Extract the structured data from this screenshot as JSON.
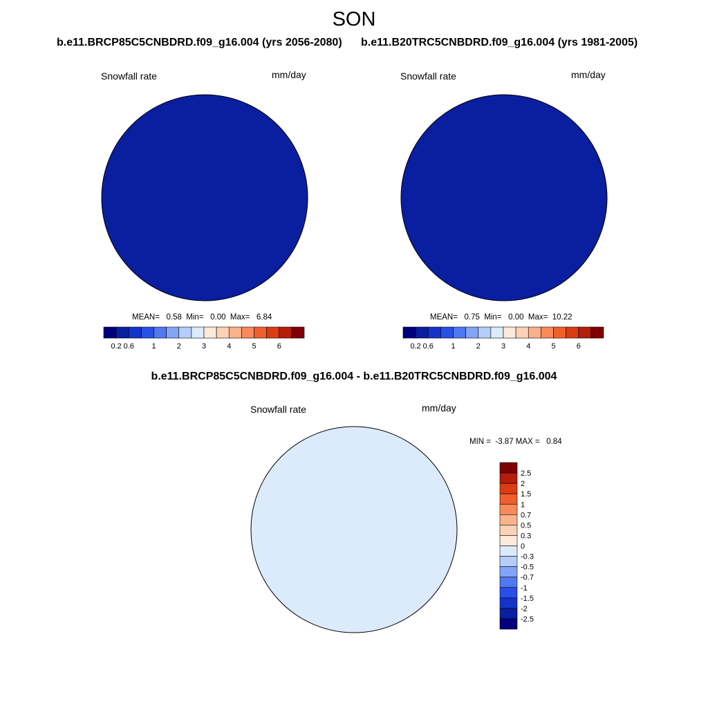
{
  "figure": {
    "title": "SON",
    "left_title": "b.e11.BRCP85C5CNBDRD.f09_g16.004 (yrs 2056-2080)",
    "right_title": "b.e11.B20TRC5CNBDRD.f09_g16.004 (yrs 1981-2005)",
    "diff_title": "b.e11.BRCP85C5CNBDRD.f09_g16.004 - b.e11.B20TRC5CNBDRD.f09_g16.004"
  },
  "panels": {
    "future": {
      "variable": "Snowfall rate",
      "units": "mm/day",
      "stats": "MEAN=   0.58  Min=   0.00  Max=   6.84",
      "mean": 0.58,
      "min": 0.0,
      "max": 6.84
    },
    "historical": {
      "variable": "Snowfall rate",
      "units": "mm/day",
      "stats": "MEAN=   0.75  Min=   0.00  Max=  10.22",
      "mean": 0.75,
      "min": 0.0,
      "max": 10.22
    },
    "difference": {
      "variable": "Snowfall rate",
      "units": "mm/day",
      "stats": "MIN =  -3.87 MAX =   0.84",
      "min": -3.87,
      "max": 0.84
    }
  },
  "colorbars": {
    "absolute": {
      "colors": [
        "#00007f",
        "#0a1ea0",
        "#1433c8",
        "#2850e6",
        "#5078f0",
        "#82a5f5",
        "#b4cdfa",
        "#dcebfc",
        "#fdeadb",
        "#fcd2b6",
        "#fab28c",
        "#f88a5c",
        "#f0602d",
        "#dc3c14",
        "#b41e0a",
        "#7f0000"
      ],
      "tick_labels": [
        "0.2",
        "0.6",
        "1",
        "2",
        "3",
        "4",
        "5",
        "6"
      ]
    },
    "difference": {
      "colors": [
        "#7f0000",
        "#b41e0a",
        "#dc3c14",
        "#f0602d",
        "#f88a5c",
        "#fab28c",
        "#fcd2b6",
        "#fdeadb",
        "#dcebfc",
        "#b4cdfa",
        "#82a5f5",
        "#5078f0",
        "#2850e6",
        "#1433c8",
        "#0a1ea0",
        "#00007f"
      ],
      "tick_labels": [
        "2.5",
        "2",
        "1.5",
        "1",
        "0.7",
        "0.5",
        "0.3",
        "0",
        "-0.3",
        "-0.5",
        "-0.7",
        "-1",
        "-1.5",
        "-2",
        "-2.5"
      ]
    }
  }
}
